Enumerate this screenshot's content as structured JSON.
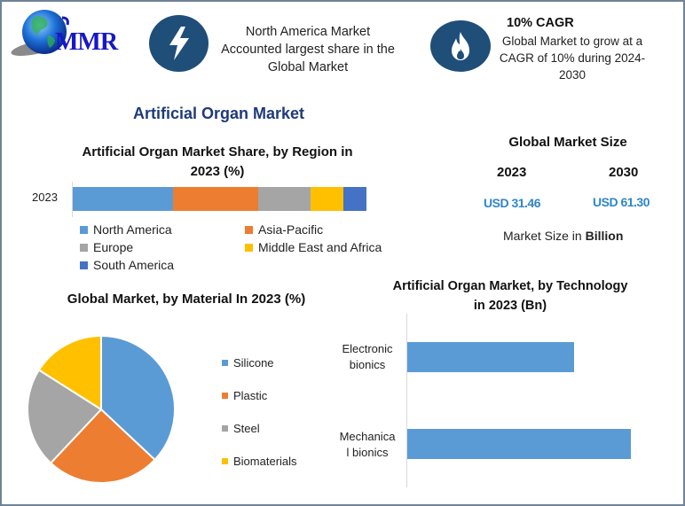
{
  "header": {
    "logo": {
      "text": "MMR",
      "icon": "globe-icon"
    },
    "highlight_1": {
      "icon": "lightning-bolt-icon",
      "lines": [
        "North America Market",
        "Accounted largest share in the",
        "Global Market"
      ]
    },
    "highlight_2": {
      "icon": "flame-icon",
      "title": "10% CAGR",
      "lines": [
        "Global Market to grow at a",
        "CAGR of 10% during 2024-",
        "2030"
      ]
    }
  },
  "main_title": "Artificial Organ Market",
  "market_size": {
    "title": "Global Market Size",
    "years": [
      "2023",
      "2030"
    ],
    "values": [
      "USD 31.46",
      "USD 61.30"
    ],
    "note_prefix": "Market Size in ",
    "note_bold": "Billion"
  },
  "colors": {
    "blue": "#5b9bd5",
    "orange": "#ed7d31",
    "gray": "#a5a5a5",
    "yellow": "#ffc000",
    "dark_blue": "#4472c4",
    "icon_bg": "#1f4e79",
    "title_blue": "#1f3a7a",
    "value_blue": "#2e86c9"
  },
  "chart_data": [
    {
      "type": "bar",
      "orientation": "horizontal-stacked",
      "title": "Artificial Organ Market Share, by Region in 2023 (%)",
      "title_lines": [
        "Artificial Organ Market Share, by Region in",
        "2023 (%)"
      ],
      "categories": [
        "2023"
      ],
      "series": [
        {
          "name": "North America",
          "values": [
            34
          ],
          "color": "#5b9bd5"
        },
        {
          "name": "Asia-Pacific",
          "values": [
            29
          ],
          "color": "#ed7d31"
        },
        {
          "name": "Europe",
          "values": [
            18
          ],
          "color": "#a5a5a5"
        },
        {
          "name": "Middle East and Africa",
          "values": [
            11
          ],
          "color": "#ffc000"
        },
        {
          "name": "South America",
          "values": [
            8
          ],
          "color": "#4472c4"
        }
      ],
      "xlabel": "",
      "ylabel": "",
      "legend_position": "bottom",
      "grid": false
    },
    {
      "type": "pie",
      "title": "Global Market, by Material In 2023 (%)",
      "categories": [
        "Silicone",
        "Plastic",
        "Steel",
        "Biomaterials"
      ],
      "values": [
        37,
        25,
        22,
        16
      ],
      "colors": [
        "#5b9bd5",
        "#ed7d31",
        "#a5a5a5",
        "#ffc000"
      ],
      "legend_position": "right"
    },
    {
      "type": "bar",
      "orientation": "horizontal",
      "title": "Artificial Organ Market, by Technology in 2023 (Bn)",
      "title_lines": [
        "Artificial Organ Market, by Technology",
        "in 2023 (Bn)"
      ],
      "categories": [
        "Electronic bionics",
        "Mechanical bionics"
      ],
      "category_label_lines": [
        [
          "Electronic",
          "bionics"
        ],
        [
          "Mechanica",
          "l bionics"
        ]
      ],
      "values": [
        13.4,
        18.0
      ],
      "xlabel": "",
      "ylabel": "",
      "grid": false,
      "color": "#5b9bd5"
    }
  ]
}
